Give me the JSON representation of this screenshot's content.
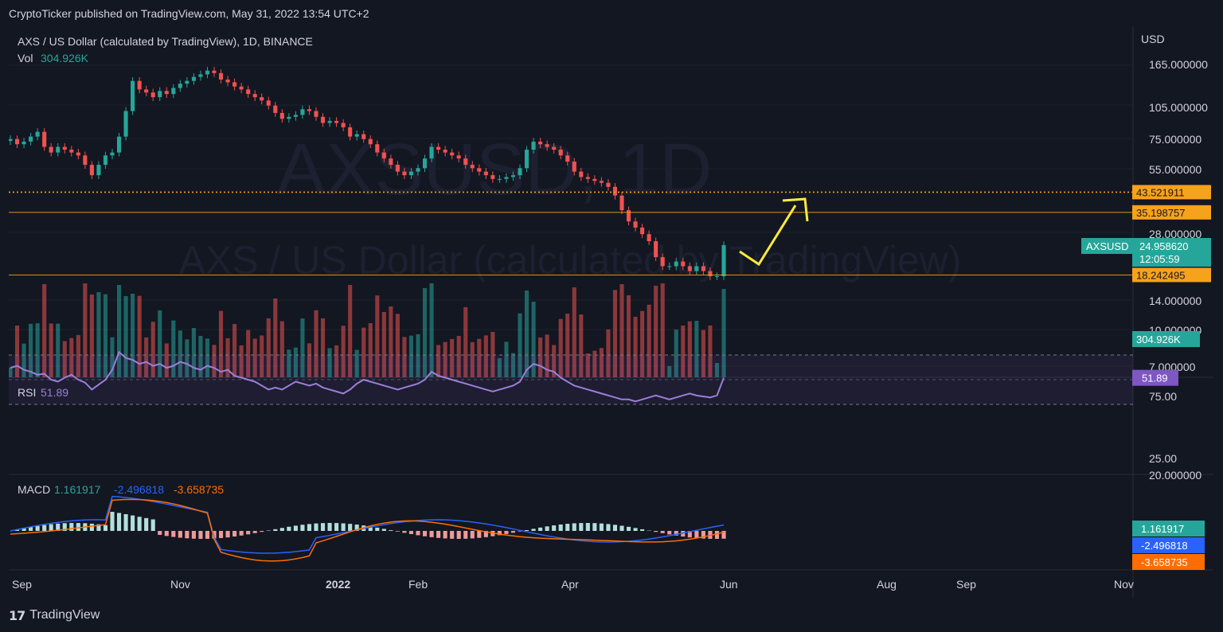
{
  "publisher_line": "CryptoTicker published on TradingView.com, May 31, 2022 13:54 UTC+2",
  "footer": {
    "logo": "17",
    "brand": "TradingView"
  },
  "watermark": {
    "symbol": "AXSUSD, 1D",
    "name": "AXS / US Dollar (calculated by TradingView)"
  },
  "header": {
    "title": "AXS / US Dollar (calculated by TradingView), 1D, BINANCE",
    "vol_label": "Vol",
    "vol_value": "304.926K"
  },
  "colors": {
    "bg": "#131722",
    "up": "#26a69a",
    "down": "#ef5350",
    "orange": "#f7a21b",
    "rsi": "#9c7fd8",
    "macd": "#2962ff",
    "signal": "#ff6d00",
    "arrow": "#ffeb3b"
  },
  "chart_data": [
    {
      "type": "candlestick",
      "title": "AXS / US Dollar (calculated by TradingView), 1D, BINANCE",
      "y_scale": "log",
      "currency": "USD",
      "y_ticks": [
        "165.000000",
        "105.000000",
        "75.000000",
        "55.000000",
        "28.000000",
        "14.000000",
        "10.000000",
        "7.000000"
      ],
      "x_ticks": [
        "Sep",
        "Nov",
        "2022",
        "Feb",
        "Apr",
        "Jun",
        "Aug",
        "Sep",
        "Nov"
      ],
      "closes": [
        76,
        72,
        74,
        78,
        82,
        70,
        66,
        70,
        68,
        66,
        64,
        58,
        52,
        58,
        64,
        66,
        78,
        102,
        140,
        128,
        124,
        118,
        126,
        122,
        130,
        136,
        140,
        146,
        150,
        156,
        152,
        142,
        138,
        132,
        128,
        122,
        118,
        114,
        108,
        100,
        94,
        96,
        98,
        104,
        102,
        96,
        90,
        92,
        90,
        86,
        78,
        80,
        76,
        72,
        66,
        62,
        58,
        54,
        52,
        54,
        56,
        62,
        70,
        68,
        66,
        64,
        62,
        58,
        56,
        54,
        52,
        50,
        50,
        51,
        52,
        56,
        68,
        74,
        72,
        70,
        68,
        64,
        60,
        54,
        51,
        50,
        49,
        48,
        46,
        42,
        36,
        32,
        30,
        28,
        26,
        22,
        20,
        20,
        21,
        20,
        19,
        20,
        19,
        18,
        18,
        24.96
      ],
      "horizontal_levels": [
        {
          "value": 43.521911,
          "label": "43.521911",
          "style": "dotted"
        },
        {
          "value": 35.198757,
          "label": "35.198757",
          "style": "solid-thin"
        },
        {
          "value": 18.242495,
          "label": "18.242495",
          "style": "solid-thin"
        }
      ],
      "last_price": {
        "symbol": "AXSUSD",
        "value": "24.958620",
        "countdown": "12:05:59"
      },
      "annotation": "yellow arrow pointing up-right"
    },
    {
      "type": "bar",
      "title": "Vol",
      "last_value": "304.926K"
    },
    {
      "type": "line",
      "title": "RSI",
      "last_value": "51.89",
      "band": [
        25,
        75
      ],
      "y_ticks": [
        "75.00",
        "25.00"
      ],
      "values": [
        62,
        64,
        60,
        58,
        55,
        56,
        50,
        48,
        52,
        55,
        50,
        47,
        40,
        45,
        50,
        60,
        78,
        72,
        70,
        66,
        68,
        64,
        66,
        62,
        64,
        68,
        66,
        62,
        60,
        64,
        62,
        58,
        60,
        54,
        52,
        50,
        48,
        44,
        40,
        42,
        40,
        44,
        48,
        46,
        44,
        46,
        42,
        40,
        38,
        36,
        40,
        46,
        50,
        48,
        46,
        44,
        42,
        40,
        42,
        44,
        46,
        50,
        58,
        54,
        52,
        50,
        48,
        46,
        44,
        42,
        40,
        38,
        40,
        42,
        44,
        48,
        60,
        66,
        64,
        60,
        58,
        52,
        48,
        44,
        42,
        40,
        38,
        36,
        34,
        32,
        30,
        30,
        28,
        30,
        32,
        34,
        32,
        30,
        32,
        34,
        36,
        34,
        33,
        32,
        34,
        51.89
      ]
    },
    {
      "type": "line",
      "title": "MACD",
      "values_label": {
        "hist": "1.161917",
        "macd": "-2.496818",
        "signal": "-3.658735"
      },
      "y_ticks": [
        "20.000000"
      ]
    }
  ]
}
